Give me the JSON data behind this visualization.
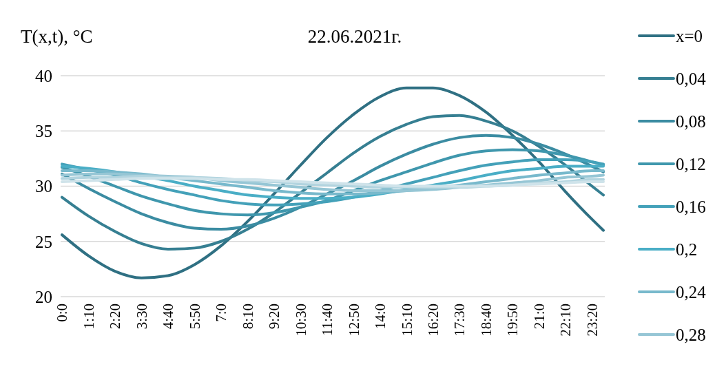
{
  "chart_data": {
    "type": "line",
    "title": "22.06.2021г.",
    "ylabel": "T(x,t), °C",
    "x": [
      0,
      1.1667,
      2.3333,
      3.5,
      4.6667,
      5.8333,
      7,
      8.1667,
      9.3333,
      10.5,
      11.6667,
      12.8333,
      14,
      15.1667,
      16.3333,
      17.5,
      18.6667,
      19.8333,
      21,
      22.1667,
      23.3333,
      23.8333
    ],
    "xlim": [
      0,
      23.8333
    ],
    "xticks": [
      {
        "value": 0,
        "label": "0:0"
      },
      {
        "value": 1.1667,
        "label": "1:10"
      },
      {
        "value": 2.3333,
        "label": "2:20"
      },
      {
        "value": 3.5,
        "label": "3:30"
      },
      {
        "value": 4.6667,
        "label": "4:40"
      },
      {
        "value": 5.8333,
        "label": "5:50"
      },
      {
        "value": 7,
        "label": "7:0"
      },
      {
        "value": 8.1667,
        "label": "8:10"
      },
      {
        "value": 9.3333,
        "label": "9:20"
      },
      {
        "value": 10.5,
        "label": "10:30"
      },
      {
        "value": 11.6667,
        "label": "11:40"
      },
      {
        "value": 12.8333,
        "label": "12:50"
      },
      {
        "value": 14,
        "label": "14:0"
      },
      {
        "value": 15.1667,
        "label": "15:10"
      },
      {
        "value": 16.3333,
        "label": "16:20"
      },
      {
        "value": 17.5,
        "label": "17:30"
      },
      {
        "value": 18.6667,
        "label": "18:40"
      },
      {
        "value": 19.8333,
        "label": "19:50"
      },
      {
        "value": 21,
        "label": "21:0"
      },
      {
        "value": 22.1667,
        "label": "22:10"
      },
      {
        "value": 23.3333,
        "label": "23:20"
      }
    ],
    "ylim": [
      20,
      40
    ],
    "yticks": [
      20,
      25,
      30,
      35,
      40
    ],
    "grid": "y",
    "legend": "right",
    "marker": "none",
    "line_style": "solid",
    "series": [
      {
        "name": "x=0",
        "color": "#2f7083",
        "values": [
          25.6,
          23.7,
          22.3,
          21.7,
          21.9,
          22.9,
          24.6,
          26.8,
          29.3,
          31.9,
          34.4,
          36.5,
          38.1,
          38.9,
          38.9,
          38.2,
          36.7,
          34.6,
          32.2,
          29.5,
          27.0,
          26.0
        ]
      },
      {
        "name": "0,04",
        "color": "#367f92",
        "values": [
          29.0,
          27.3,
          25.9,
          24.8,
          24.3,
          24.4,
          25.0,
          26.1,
          27.6,
          29.4,
          31.2,
          33.0,
          34.5,
          35.6,
          36.3,
          36.4,
          35.9,
          35.0,
          33.6,
          31.9,
          30.0,
          29.2
        ]
      },
      {
        "name": "0,08",
        "color": "#3b8ca2",
        "values": [
          31.1,
          29.8,
          28.6,
          27.5,
          26.7,
          26.2,
          26.1,
          26.4,
          27.1,
          28.1,
          29.3,
          30.5,
          31.8,
          32.9,
          33.8,
          34.4,
          34.6,
          34.4,
          33.8,
          32.9,
          31.8,
          31.3
        ]
      },
      {
        "name": "0,12",
        "color": "#3f97ad",
        "values": [
          31.7,
          30.9,
          30.0,
          29.1,
          28.4,
          27.8,
          27.5,
          27.4,
          27.6,
          28.1,
          28.7,
          29.6,
          30.5,
          31.3,
          32.1,
          32.8,
          33.2,
          33.3,
          33.2,
          32.8,
          32.2,
          31.9
        ]
      },
      {
        "name": "0,16",
        "color": "#44a1b9",
        "values": [
          32.0,
          31.5,
          31.0,
          30.3,
          29.7,
          29.2,
          28.7,
          28.4,
          28.3,
          28.4,
          28.6,
          29.0,
          29.6,
          30.2,
          30.8,
          31.4,
          31.9,
          32.2,
          32.4,
          32.4,
          32.2,
          32.0
        ]
      },
      {
        "name": "0,2",
        "color": "#4aaec6",
        "values": [
          31.8,
          31.6,
          31.3,
          30.9,
          30.5,
          30.0,
          29.6,
          29.2,
          29.0,
          28.9,
          28.9,
          29.0,
          29.3,
          29.7,
          30.1,
          30.5,
          31.0,
          31.4,
          31.6,
          31.8,
          31.8,
          31.8
        ]
      },
      {
        "name": "0,24",
        "color": "#78b9cc",
        "values": [
          31.4,
          31.4,
          31.3,
          31.1,
          30.8,
          30.5,
          30.2,
          29.9,
          29.6,
          29.4,
          29.3,
          29.3,
          29.4,
          29.6,
          29.8,
          30.1,
          30.4,
          30.7,
          31.0,
          31.2,
          31.4,
          31.4
        ]
      },
      {
        "name": "0,28",
        "color": "#96c6d5",
        "values": [
          31.0,
          31.1,
          31.1,
          31.0,
          30.9,
          30.8,
          30.5,
          30.3,
          30.1,
          29.9,
          29.7,
          29.6,
          29.6,
          29.6,
          29.7,
          29.9,
          30.1,
          30.3,
          30.5,
          30.8,
          30.9,
          31.0
        ]
      },
      {
        "color": "#b2d4df",
        "values": [
          30.7,
          30.8,
          30.8,
          30.9,
          30.8,
          30.8,
          30.7,
          30.5,
          30.4,
          30.2,
          30.1,
          30.0,
          29.9,
          29.9,
          29.9,
          29.9,
          30.0,
          30.1,
          30.3,
          30.4,
          30.6,
          30.6
        ]
      },
      {
        "color": "#cfe3ea",
        "values": [
          30.4,
          30.5,
          30.6,
          30.7,
          30.7,
          30.7,
          30.6,
          30.6,
          30.5,
          30.4,
          30.3,
          30.2,
          30.1,
          30.0,
          30.0,
          30.0,
          30.0,
          30.1,
          30.2,
          30.3,
          30.4,
          30.4
        ]
      }
    ]
  }
}
